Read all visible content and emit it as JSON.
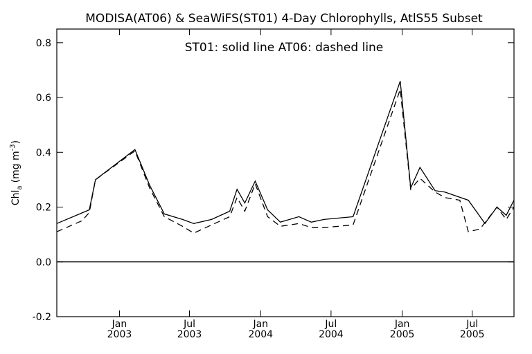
{
  "chart_data": {
    "type": "line",
    "title": "MODISA(AT06) & SeaWiFS(ST01) 4-Day Chlorophylls, AtlS55 Subset",
    "annotation": "ST01: solid line   AT06: dashed line",
    "ylabel_main": "Chl",
    "ylabel_sub": "a",
    "ylabel_units": "(mg m",
    "ylabel_sup": "-3",
    "ylabel_close": ")",
    "ylim": [
      -0.2,
      0.85
    ],
    "xlim": [
      "2002-07-23",
      "2005-10-17"
    ],
    "yticks": [
      {
        "value": -0.2,
        "label": "-0.2"
      },
      {
        "value": 0.0,
        "label": "0.0"
      },
      {
        "value": 0.2,
        "label": "0.2"
      },
      {
        "value": 0.4,
        "label": "0.4"
      },
      {
        "value": 0.6,
        "label": "0.6"
      },
      {
        "value": 0.8,
        "label": "0.8"
      }
    ],
    "xticks": [
      {
        "date": "2003-01-01",
        "month": "Jan",
        "year": "2003"
      },
      {
        "date": "2003-07-01",
        "month": "Jul",
        "year": "2003"
      },
      {
        "date": "2004-01-01",
        "month": "Jan",
        "year": "2004"
      },
      {
        "date": "2004-07-01",
        "month": "Jul",
        "year": "2004"
      },
      {
        "date": "2005-01-01",
        "month": "Jan",
        "year": "2005"
      },
      {
        "date": "2005-07-01",
        "month": "Jul",
        "year": "2005"
      }
    ],
    "zero_line": 0.0,
    "grid": false,
    "series": [
      {
        "name": "ST01",
        "style": "solid",
        "color": "#000000",
        "points": [
          {
            "x": "2002-07-23",
            "y": 0.14
          },
          {
            "x": "2002-10-15",
            "y": 0.19
          },
          {
            "x": "2002-10-31",
            "y": 0.3
          },
          {
            "x": "2003-02-10",
            "y": 0.41
          },
          {
            "x": "2003-03-20",
            "y": 0.28
          },
          {
            "x": "2003-04-27",
            "y": 0.175
          },
          {
            "x": "2003-06-13",
            "y": 0.155
          },
          {
            "x": "2003-07-12",
            "y": 0.14
          },
          {
            "x": "2003-08-27",
            "y": 0.155
          },
          {
            "x": "2003-10-13",
            "y": 0.185
          },
          {
            "x": "2003-11-01",
            "y": 0.265
          },
          {
            "x": "2003-11-21",
            "y": 0.215
          },
          {
            "x": "2003-12-18",
            "y": 0.295
          },
          {
            "x": "2004-01-19",
            "y": 0.19
          },
          {
            "x": "2004-02-21",
            "y": 0.145
          },
          {
            "x": "2004-04-09",
            "y": 0.165
          },
          {
            "x": "2004-05-11",
            "y": 0.145
          },
          {
            "x": "2004-06-13",
            "y": 0.155
          },
          {
            "x": "2004-08-27",
            "y": 0.165
          },
          {
            "x": "2004-12-27",
            "y": 0.66
          },
          {
            "x": "2005-01-23",
            "y": 0.27
          },
          {
            "x": "2005-02-16",
            "y": 0.345
          },
          {
            "x": "2005-03-27",
            "y": 0.26
          },
          {
            "x": "2005-04-21",
            "y": 0.255
          },
          {
            "x": "2005-06-21",
            "y": 0.225
          },
          {
            "x": "2005-08-03",
            "y": 0.14
          },
          {
            "x": "2005-09-03",
            "y": 0.2
          },
          {
            "x": "2005-09-27",
            "y": 0.17
          },
          {
            "x": "2005-10-17",
            "y": 0.225
          }
        ]
      },
      {
        "name": "AT06",
        "style": "dashed",
        "color": "#000000",
        "points": [
          {
            "x": "2002-07-23",
            "y": 0.11
          },
          {
            "x": "2002-09-26",
            "y": 0.15
          },
          {
            "x": "2002-10-15",
            "y": 0.18
          },
          {
            "x": "2002-10-31",
            "y": 0.3
          },
          {
            "x": "2003-02-10",
            "y": 0.405
          },
          {
            "x": "2003-03-20",
            "y": 0.27
          },
          {
            "x": "2003-04-27",
            "y": 0.165
          },
          {
            "x": "2003-06-13",
            "y": 0.13
          },
          {
            "x": "2003-07-12",
            "y": 0.105
          },
          {
            "x": "2003-08-27",
            "y": 0.135
          },
          {
            "x": "2003-10-13",
            "y": 0.165
          },
          {
            "x": "2003-11-01",
            "y": 0.235
          },
          {
            "x": "2003-11-21",
            "y": 0.185
          },
          {
            "x": "2003-12-18",
            "y": 0.285
          },
          {
            "x": "2004-01-19",
            "y": 0.165
          },
          {
            "x": "2004-02-21",
            "y": 0.13
          },
          {
            "x": "2004-04-09",
            "y": 0.14
          },
          {
            "x": "2004-05-11",
            "y": 0.125
          },
          {
            "x": "2004-06-13",
            "y": 0.125
          },
          {
            "x": "2004-08-27",
            "y": 0.135
          },
          {
            "x": "2004-12-27",
            "y": 0.63
          },
          {
            "x": "2005-01-23",
            "y": 0.265
          },
          {
            "x": "2005-02-16",
            "y": 0.305
          },
          {
            "x": "2005-03-27",
            "y": 0.255
          },
          {
            "x": "2005-04-21",
            "y": 0.235
          },
          {
            "x": "2005-05-30",
            "y": 0.225
          },
          {
            "x": "2005-06-21",
            "y": 0.11
          },
          {
            "x": "2005-07-21",
            "y": 0.12
          },
          {
            "x": "2005-09-03",
            "y": 0.2
          },
          {
            "x": "2005-09-27",
            "y": 0.155
          },
          {
            "x": "2005-10-17",
            "y": 0.2
          }
        ]
      }
    ]
  }
}
